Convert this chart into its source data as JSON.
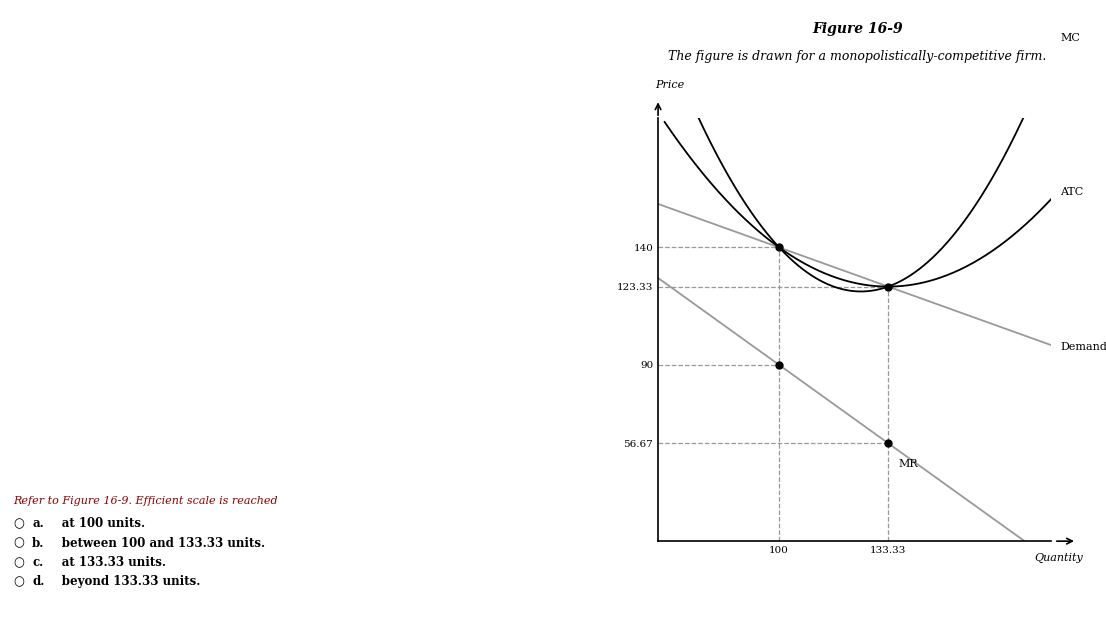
{
  "title": "Figure 16-9",
  "subtitle": "The figure is drawn for a monopolistically-competitive firm.",
  "xlabel": "Quantity",
  "ylabel": "Price",
  "q1": 100,
  "q2": 133.33,
  "p_d_q1": 140,
  "p_d_q2": 123.33,
  "p_mr_q1": 90,
  "p_mr_q2": 56.67,
  "xlim": [
    63,
    183
  ],
  "ylim": [
    15,
    195
  ],
  "curve_color": "#999999",
  "black_color": "#000000",
  "dashed_color": "#999999",
  "question_text": "Refer to Figure 16-9. Efficient scale is reached",
  "question_color": "#8B0000",
  "options": [
    "a. at 100 units.",
    "b. between 100 and 133.33 units.",
    "c. at 133.33 units.",
    "d. beyond 133.33 units."
  ],
  "fig_title_fontsize": 10,
  "subtitle_fontsize": 9,
  "label_fontsize": 8,
  "tick_fontsize": 7.5,
  "question_fontsize": 8,
  "option_fontsize": 9
}
